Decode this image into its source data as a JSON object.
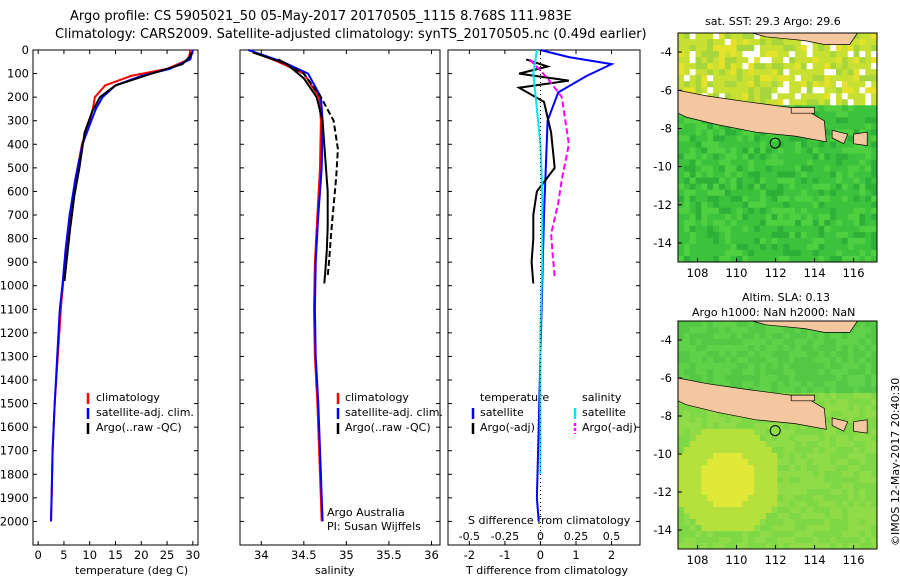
{
  "header": {
    "line1": "Argo profile: CS 5905021_50 05-May-2017 20170505_1115 8.768S 111.983E",
    "line2": "Climatology: CARS2009. Satellite-adjusted climatology: synTS_20170505.nc (0.49d earlier)"
  },
  "colors": {
    "climatology": "#ff0000",
    "satellite": "#0000ff",
    "argo": "#000000",
    "satellite_s": "#00e5ee",
    "argo_s": "#ff00ff",
    "land": "#f5c7a0"
  },
  "chart_data": [
    {
      "type": "line",
      "id": "temperature",
      "xlabel": "temperature (deg C)",
      "xlim": [
        -1,
        31
      ],
      "xticks": [
        0,
        5,
        10,
        15,
        20,
        25,
        30
      ],
      "ylim": [
        0,
        2100
      ],
      "yticks": [
        0,
        100,
        200,
        300,
        400,
        500,
        600,
        700,
        800,
        900,
        1000,
        1100,
        1200,
        1300,
        1400,
        1500,
        1600,
        1700,
        1800,
        1900,
        2000
      ],
      "legend": [
        "climatology",
        "satellite-adj. clim.",
        "Argo(..raw -QC)"
      ],
      "series": [
        {
          "name": "climatology",
          "color": "#ff0000",
          "dash": false,
          "x": [
            29.5,
            29.2,
            25.0,
            18.0,
            13.0,
            11.0,
            10.6,
            10.0,
            8.5,
            7.2,
            6.2,
            5.4,
            4.8,
            4.4,
            3.8,
            3.2,
            2.8,
            2.6,
            2.5
          ],
          "y": [
            0,
            40,
            80,
            110,
            150,
            200,
            250,
            300,
            400,
            550,
            700,
            850,
            1000,
            1100,
            1300,
            1500,
            1700,
            1900,
            2000
          ]
        },
        {
          "name": "satellite-adj. clim.",
          "color": "#0000ff",
          "dash": false,
          "x": [
            30.0,
            29.5,
            25.5,
            20.0,
            15.0,
            12.5,
            11.2,
            10.3,
            8.6,
            7.2,
            6.1,
            5.3,
            4.7,
            4.2,
            3.7,
            3.2,
            2.8,
            2.6,
            2.5
          ],
          "y": [
            0,
            40,
            80,
            110,
            150,
            200,
            250,
            300,
            400,
            550,
            700,
            850,
            1000,
            1100,
            1300,
            1500,
            1700,
            1900,
            2000
          ]
        },
        {
          "name": "Argo(..raw -QC)",
          "color": "#000000",
          "dash": false,
          "x": [
            29.8,
            29.3,
            28.0,
            22.0,
            15.0,
            12.0,
            10.5,
            9.0,
            8.0,
            7.0,
            6.2,
            5.5,
            5.1
          ],
          "y": [
            10,
            30,
            60,
            100,
            150,
            200,
            260,
            350,
            500,
            620,
            760,
            900,
            980
          ]
        }
      ]
    },
    {
      "type": "line",
      "id": "salinity",
      "xlabel": "salinity",
      "xlim": [
        33.75,
        36.1
      ],
      "xticks": [
        34,
        34.5,
        35,
        35.5,
        36
      ],
      "xticklabels": [
        "34",
        "34.5",
        "35",
        "35.5",
        "36"
      ],
      "ylim": [
        0,
        2100
      ],
      "legend": [
        "climatology",
        "satellite-adj. clim.",
        "Argo(..raw -QC)"
      ],
      "annotations": [
        "Argo Australia",
        "PI: Susan Wijffels"
      ],
      "series": [
        {
          "name": "climatology",
          "color": "#ff0000",
          "dash": false,
          "x": [
            33.85,
            34.2,
            34.5,
            34.68,
            34.7,
            34.69,
            34.66,
            34.63,
            34.62,
            34.63,
            34.66,
            34.69,
            34.71
          ],
          "y": [
            0,
            50,
            100,
            200,
            300,
            500,
            700,
            900,
            1100,
            1300,
            1500,
            1800,
            2000
          ]
        },
        {
          "name": "satellite-adj. clim.",
          "color": "#0000ff",
          "dash": false,
          "x": [
            33.85,
            34.25,
            34.55,
            34.7,
            34.72,
            34.71,
            34.67,
            34.64,
            34.63,
            34.64,
            34.67,
            34.7,
            34.72
          ],
          "y": [
            0,
            50,
            100,
            200,
            300,
            500,
            700,
            900,
            1100,
            1300,
            1500,
            1800,
            2000
          ]
        },
        {
          "name": "Argo(..raw -QC)",
          "color": "#000000",
          "dash": false,
          "x": [
            33.9,
            34.3,
            34.5,
            34.65,
            34.72,
            34.75,
            34.78,
            34.78,
            34.77,
            34.75,
            34.74
          ],
          "y": [
            10,
            60,
            120,
            200,
            300,
            450,
            600,
            750,
            850,
            950,
            990
          ]
        },
        {
          "name": "Argo(..raw -QC)",
          "color": "#000000",
          "dash": true,
          "x": [
            34.2,
            34.5,
            34.7,
            34.85,
            34.9,
            34.88,
            34.85,
            34.82,
            34.8,
            34.78
          ],
          "y": [
            40,
            100,
            200,
            300,
            420,
            540,
            660,
            780,
            880,
            960
          ]
        }
      ]
    },
    {
      "type": "line",
      "id": "difference",
      "xlabel": "T difference from climatology",
      "xlabel_top": "S difference from climatology",
      "xlim": [
        -2.6,
        2.8
      ],
      "xticks": [
        -2,
        -1,
        0,
        1,
        2
      ],
      "xticks_top": [
        -0.5,
        -0.25,
        0,
        0.25,
        0.5
      ],
      "ylim": [
        0,
        2100
      ],
      "legend_t": {
        "heading": "temperature",
        "items": [
          "satellite",
          "Argo(-adj)"
        ]
      },
      "legend_s": {
        "heading": "salinity",
        "items": [
          "satellite",
          "Argo(-adj)"
        ]
      },
      "series": [
        {
          "name": "satellite",
          "color": "#0000ff",
          "dash": false,
          "x": [
            0.0,
            0.8,
            2.0,
            1.3,
            0.5,
            0.2,
            0.15,
            0.1,
            0.05,
            0.0,
            -0.05,
            -0.1,
            -0.05
          ],
          "y": [
            0,
            30,
            60,
            110,
            180,
            300,
            500,
            700,
            1000,
            1300,
            1600,
            1900,
            2000
          ]
        },
        {
          "name": "Argo(-adj)",
          "color": "#000000",
          "dash": false,
          "x": [
            -0.4,
            0.2,
            -0.6,
            0.8,
            -0.6,
            0.1,
            0.3,
            0.4,
            -0.1,
            -0.2,
            -0.2,
            -0.25,
            -0.2
          ],
          "y": [
            40,
            70,
            100,
            130,
            160,
            220,
            350,
            500,
            600,
            700,
            800,
            900,
            990
          ]
        },
        {
          "name": "satellite",
          "color": "#00e5ee",
          "dash": false,
          "x": [
            -0.1,
            -0.2,
            -0.1,
            0.0,
            0.05,
            0.05,
            0.0,
            0.0,
            0.0
          ],
          "y": [
            0,
            100,
            250,
            400,
            600,
            900,
            1200,
            1500,
            1800
          ]
        },
        {
          "name": "Argo(-adj)",
          "color": "#ff00ff",
          "dash": true,
          "x": [
            -0.3,
            0.2,
            0.6,
            0.8,
            0.6,
            0.5,
            0.3,
            0.35,
            0.4
          ],
          "y": [
            40,
            120,
            200,
            400,
            550,
            650,
            780,
            880,
            960
          ]
        }
      ]
    },
    {
      "type": "heatmap",
      "id": "sst_map",
      "title": "sat. SST: 29.3  Argo: 29.6",
      "xticks": [
        108,
        110,
        112,
        114,
        116
      ],
      "yticks": [
        -4,
        -6,
        -8,
        -10,
        -12,
        -14
      ],
      "xlim": [
        107,
        117.2
      ],
      "ylim": [
        -15,
        -3
      ],
      "marker": {
        "lon": 111.983,
        "lat": -8.768
      }
    },
    {
      "type": "heatmap",
      "id": "sla_map",
      "title": "Altim. SLA: 0.13",
      "subtitle": "Argo h1000: NaN h2000: NaN",
      "xticks": [
        108,
        110,
        112,
        114,
        116
      ],
      "yticks": [
        -4,
        -6,
        -8,
        -10,
        -12,
        -14
      ],
      "xlim": [
        107,
        117.2
      ],
      "ylim": [
        -15,
        -3
      ],
      "marker": {
        "lon": 111.983,
        "lat": -8.768
      }
    }
  ],
  "footer_vertical": "©IMOS 12-May-2017 20:40:30"
}
